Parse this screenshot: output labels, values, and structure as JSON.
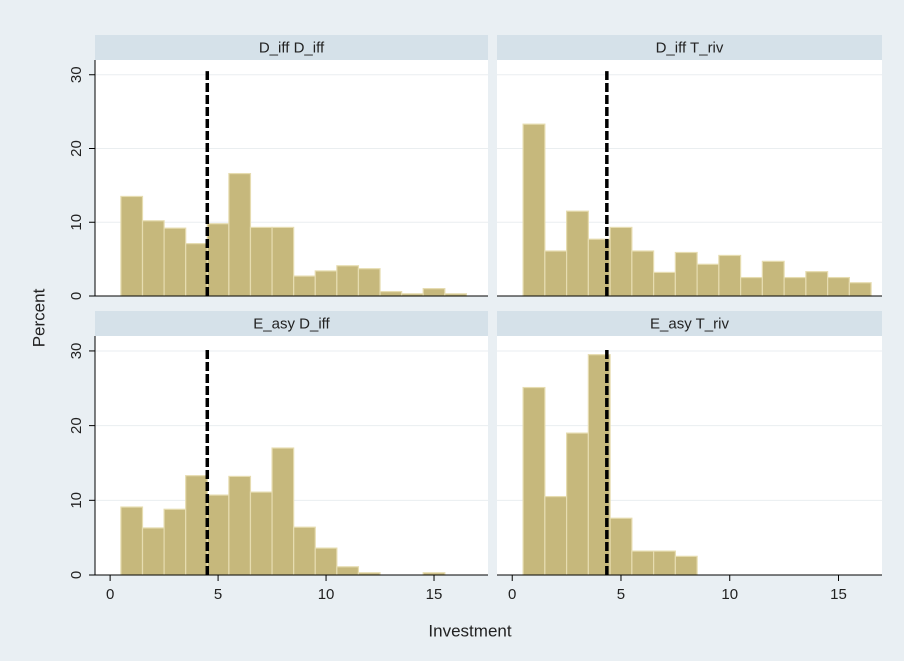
{
  "chart_data": [
    {
      "type": "histogram",
      "title": "D_iff D_iff",
      "color": "#c6b87c",
      "bins": [
        0.5,
        1.5,
        2.5,
        3.5,
        4.5,
        5.5,
        6.5,
        7.5,
        8.5,
        9.5,
        10.5,
        11.5,
        12.5,
        13.5,
        14.5,
        15.5,
        16.5
      ],
      "values": [
        13.5,
        10.2,
        9.2,
        7.1,
        9.8,
        16.6,
        9.3,
        9.3,
        2.7,
        3.4,
        4.1,
        3.7,
        0.6,
        0.3,
        1.0,
        0.3
      ],
      "xlim": [
        -0.7,
        17.5
      ],
      "ylim": [
        0,
        32
      ],
      "yticks": [
        0,
        10,
        20,
        30
      ],
      "grid": true,
      "vline": {
        "x": 4.5,
        "y_top": 30.5
      }
    },
    {
      "type": "histogram",
      "title": "D_iff T_riv",
      "color": "#c6b87c",
      "bins": [
        0.5,
        1.5,
        2.5,
        3.5,
        4.5,
        5.5,
        6.5,
        7.5,
        8.5,
        9.5,
        10.5,
        11.5,
        12.5,
        13.5,
        14.5,
        15.5,
        16.5
      ],
      "values": [
        23.3,
        6.1,
        11.5,
        7.7,
        9.3,
        6.1,
        3.2,
        5.9,
        4.3,
        5.5,
        2.5,
        4.7,
        2.5,
        3.3,
        2.5,
        1.8
      ],
      "xlim": [
        -0.7,
        17.0
      ],
      "ylim": [
        0,
        32
      ],
      "yticks": [
        0,
        10,
        20,
        30
      ],
      "grid": true,
      "vline": {
        "x": 4.35,
        "y_top": 30.5
      }
    },
    {
      "type": "histogram",
      "title": "E_asy D_iff",
      "color": "#c6b87c",
      "bins": [
        0.5,
        1.5,
        2.5,
        3.5,
        4.5,
        5.5,
        6.5,
        7.5,
        8.5,
        9.5,
        10.5,
        11.5,
        12.5,
        13.5,
        14.5,
        15.5,
        16.5
      ],
      "values": [
        9.1,
        6.3,
        8.8,
        13.3,
        10.7,
        13.2,
        11.1,
        17.0,
        6.4,
        3.6,
        1.1,
        0.3,
        0,
        0,
        0.3,
        0
      ],
      "xlim": [
        -0.7,
        17.5
      ],
      "ylim": [
        0,
        32
      ],
      "xticks": [
        0,
        5,
        10,
        15
      ],
      "yticks": [
        0,
        10,
        20,
        30
      ],
      "grid": true,
      "vline": {
        "x": 4.5,
        "y_top": 30.5
      }
    },
    {
      "type": "histogram",
      "title": "E_asy T_riv",
      "color": "#c6b87c",
      "bins": [
        0.5,
        1.5,
        2.5,
        3.5,
        4.5,
        5.5,
        6.5,
        7.5,
        8.5,
        9.5,
        10.5,
        11.5,
        12.5,
        13.5,
        14.5,
        15.5,
        16.5
      ],
      "values": [
        25.1,
        10.5,
        19.0,
        29.5,
        7.6,
        3.2,
        3.2,
        2.5,
        0,
        0,
        0,
        0,
        0,
        0,
        0,
        0
      ],
      "xlim": [
        -0.7,
        17.0
      ],
      "ylim": [
        0,
        32
      ],
      "xticks": [
        0,
        5,
        10,
        15
      ],
      "yticks": [
        0,
        10,
        20,
        30
      ],
      "grid": true,
      "vline": {
        "x": 4.35,
        "y_top": 30.5
      }
    }
  ],
  "axis_titles": {
    "y": "Percent",
    "x": "Investment"
  }
}
